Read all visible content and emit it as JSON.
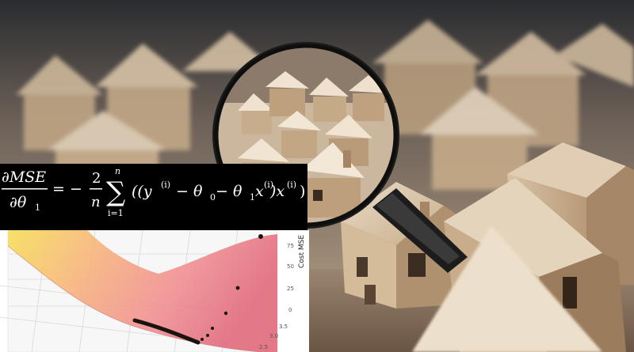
{
  "formula": {
    "lhs_num": "∂MSE",
    "lhs_den": "∂θ",
    "lhs_den_sub": "1",
    "equals": "= −",
    "coef_num": "2",
    "coef_den": "n",
    "sum_upper": "n",
    "sum_sign": "∑",
    "sum_lower": "i=1",
    "body": "((y",
    "body_sup1": "(i)",
    "body_mid": " − θ",
    "body_sub0": "0",
    "body_mid2": " − θ",
    "body_sub1": "1",
    "body_x": "x",
    "body_sup2": "(i)",
    "body_close": ")x",
    "body_sup3": "(i)",
    "body_end": ")"
  },
  "plot": {
    "z_axis_title": "Cost MSE",
    "z_ticks": [
      "75",
      "50",
      "25",
      "0"
    ],
    "y_ticks": [
      "3.5",
      "3.0",
      "2.5"
    ]
  },
  "colors": {
    "wood_light": "#e8d9c3",
    "wood_mid": "#c9b08f",
    "wood_dark": "#8e7156",
    "surface_yellow": "#f2d24b",
    "surface_pink": "#f39a96",
    "marker": "#1a1410"
  },
  "icons": {
    "magnifier": "magnifying-glass-icon",
    "house": "house-icon"
  }
}
